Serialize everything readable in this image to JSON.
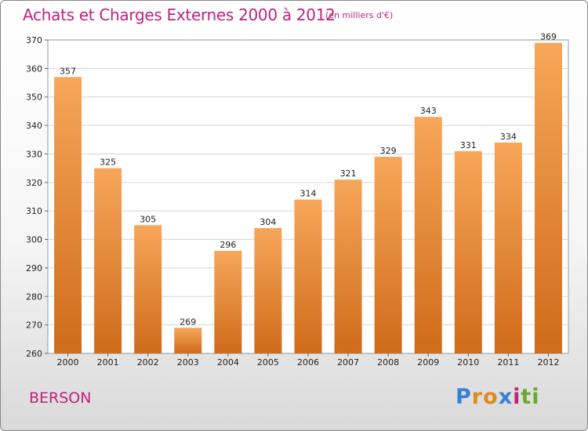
{
  "chart_data": {
    "type": "bar",
    "title": "Achats et Charges Externes 2000 à 2012",
    "subtitle": "(en milliers d'€)",
    "categories": [
      "2000",
      "2001",
      "2002",
      "2003",
      "2004",
      "2005",
      "2006",
      "2007",
      "2008",
      "2009",
      "2010",
      "2011",
      "2012"
    ],
    "values": [
      357,
      325,
      305,
      269,
      296,
      304,
      314,
      321,
      329,
      343,
      331,
      334,
      369
    ],
    "ylim": [
      260,
      370
    ],
    "yticks": [
      260,
      270,
      280,
      290,
      300,
      310,
      320,
      330,
      340,
      350,
      360,
      370
    ],
    "grid": true,
    "bar_color_top": "#f7a65a",
    "bar_color_bottom": "#cf6b1a"
  },
  "location_label": "BERSON",
  "logo": {
    "letters": [
      "P",
      "r",
      "o",
      "x",
      "i",
      "t",
      "i"
    ],
    "colors": [
      "#3a7fd5",
      "#e08a1e",
      "#e08a1e",
      "#3a7fd5",
      "#c0237a",
      "#6aa832",
      "#6aa832"
    ]
  },
  "colors": {
    "accent": "#c0237a"
  }
}
